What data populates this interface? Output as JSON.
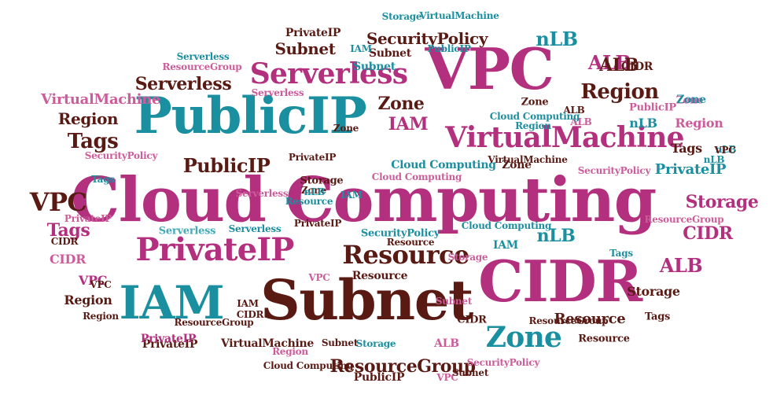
{
  "colors": {
    "magenta": "#b3307e",
    "teal": "#1a8fa0",
    "brown": "#5a1a14",
    "pink": "#cc5c9a",
    "light_teal": "#43aab8"
  },
  "words": [
    {
      "text": "Cloud Computing",
      "color": "magenta"
    },
    {
      "text": "PublicIP",
      "color": "teal"
    },
    {
      "text": "VPC",
      "color": "magenta"
    },
    {
      "text": "CIDR",
      "color": "magenta"
    },
    {
      "text": "Subnet",
      "color": "brown"
    },
    {
      "text": "IAM",
      "color": "teal"
    },
    {
      "text": "PrivateIP",
      "color": "magenta"
    },
    {
      "text": "VirtualMachine",
      "color": "magenta"
    },
    {
      "text": "Serverless",
      "color": "magenta"
    },
    {
      "text": "Resource",
      "color": "brown"
    },
    {
      "text": "Zone",
      "color": "teal"
    },
    {
      "text": "Region",
      "color": "brown"
    },
    {
      "text": "ResourceGroup",
      "color": "brown"
    },
    {
      "text": "ALB",
      "color": "magenta"
    },
    {
      "text": "nLB",
      "color": "teal"
    },
    {
      "text": "SecurityPolicy",
      "color": "brown"
    },
    {
      "text": "VPC",
      "color": "brown"
    },
    {
      "text": "Tags",
      "color": "brown"
    },
    {
      "text": "Subnet",
      "color": "brown"
    },
    {
      "text": "PublicIP",
      "color": "brown"
    },
    {
      "text": "Serverless",
      "color": "brown"
    },
    {
      "text": "Storage",
      "color": "magenta"
    },
    {
      "text": "CIDR",
      "color": "magenta"
    },
    {
      "text": "ALB",
      "color": "magenta"
    },
    {
      "text": "IAM",
      "color": "magenta"
    },
    {
      "text": "Tags",
      "color": "magenta"
    },
    {
      "text": "Region",
      "color": "brown"
    },
    {
      "text": "Zone",
      "color": "brown"
    },
    {
      "text": "Resource",
      "color": "brown"
    },
    {
      "text": "PrivateIP",
      "color": "teal"
    },
    {
      "text": "ALB",
      "color": "brown"
    },
    {
      "text": "nLB",
      "color": "teal"
    },
    {
      "text": "Storage",
      "color": "brown"
    },
    {
      "text": "VPC",
      "color": "magenta"
    },
    {
      "text": "CIDR",
      "color": "pink"
    },
    {
      "text": "Tags",
      "color": "brown"
    },
    {
      "text": "VirtualMachine",
      "color": "pink"
    },
    {
      "text": "nLB",
      "color": "teal"
    },
    {
      "text": "Region",
      "color": "brown"
    },
    {
      "text": "Cloud Computing",
      "color": "teal"
    },
    {
      "text": "Zone",
      "color": "brown"
    },
    {
      "text": "PrivateIP",
      "color": "brown"
    },
    {
      "text": "Region",
      "color": "pink"
    },
    {
      "text": "Subnet",
      "color": "brown"
    },
    {
      "text": "Subnet",
      "color": "pink"
    },
    {
      "text": "PrivateIP",
      "color": "brown"
    },
    {
      "text": "SecurityPolicy",
      "color": "teal"
    },
    {
      "text": "Serverless",
      "color": "light_teal"
    },
    {
      "text": "CIDR",
      "color": "brown"
    },
    {
      "text": "Storage",
      "color": "brown"
    },
    {
      "text": "Zone",
      "color": "pink"
    },
    {
      "text": "Zone",
      "color": "brown"
    },
    {
      "text": "PublicIP",
      "color": "pink"
    },
    {
      "text": "IAM",
      "color": "teal"
    },
    {
      "text": "IAM",
      "color": "brown"
    },
    {
      "text": "IAM",
      "color": "teal"
    },
    {
      "text": "IAM",
      "color": "teal"
    },
    {
      "text": "CIDR",
      "color": "brown"
    },
    {
      "text": "CIDR",
      "color": "brown"
    },
    {
      "text": "CIDR",
      "color": "brown"
    },
    {
      "text": "VPC",
      "color": "pink"
    },
    {
      "text": "VPC",
      "color": "pink"
    },
    {
      "text": "VPC",
      "color": "brown"
    },
    {
      "text": "ALB",
      "color": "brown"
    },
    {
      "text": "ALB",
      "color": "pink"
    },
    {
      "text": "ALB",
      "color": "pink"
    },
    {
      "text": "nLB",
      "color": "teal"
    },
    {
      "text": "Tags",
      "color": "teal"
    },
    {
      "text": "Tags",
      "color": "brown"
    },
    {
      "text": "Tags",
      "color": "teal"
    },
    {
      "text": "Resource",
      "color": "brown"
    },
    {
      "text": "Resource",
      "color": "brown"
    },
    {
      "text": "Resource",
      "color": "teal"
    },
    {
      "text": "Resource",
      "color": "brown"
    },
    {
      "text": "ResourceGroup",
      "color": "pink"
    },
    {
      "text": "ResourceGroup",
      "color": "brown"
    },
    {
      "text": "ResourceGroup",
      "color": "brown"
    },
    {
      "text": "ResourceGroup",
      "color": "pink"
    },
    {
      "text": "Serverless",
      "color": "teal"
    },
    {
      "text": "Serverless",
      "color": "pink"
    },
    {
      "text": "Serverless",
      "color": "pink"
    },
    {
      "text": "Serverless",
      "color": "teal"
    },
    {
      "text": "Storage",
      "color": "teal"
    },
    {
      "text": "Storage",
      "color": "teal"
    },
    {
      "text": "Storage",
      "color": "pink"
    },
    {
      "text": "Subnet",
      "color": "teal"
    },
    {
      "text": "Subnet",
      "color": "brown"
    },
    {
      "text": "Subnet",
      "color": "brown"
    },
    {
      "text": "PublicIP",
      "color": "brown"
    },
    {
      "text": "PublicIP",
      "color": "teal"
    },
    {
      "text": "PrivateIP",
      "color": "brown"
    },
    {
      "text": "PrivateIP",
      "color": "pink"
    },
    {
      "text": "PrivateIP",
      "color": "magenta"
    },
    {
      "text": "PrivateIP",
      "color": "brown"
    },
    {
      "text": "VirtualMachine",
      "color": "brown"
    },
    {
      "text": "VirtualMachine",
      "color": "teal"
    },
    {
      "text": "VirtualMachine",
      "color": "brown"
    },
    {
      "text": "SecurityPolicy",
      "color": "pink"
    },
    {
      "text": "SecurityPolicy",
      "color": "pink"
    },
    {
      "text": "SecurityPolicy",
      "color": "pink"
    },
    {
      "text": "Cloud Computing",
      "color": "teal"
    },
    {
      "text": "Cloud Computing",
      "color": "pink"
    },
    {
      "text": "Cloud Computing",
      "color": "brown"
    },
    {
      "text": "Cloud Computing",
      "color": "teal"
    },
    {
      "text": "Region",
      "color": "pink"
    },
    {
      "text": "Region",
      "color": "brown"
    },
    {
      "text": "Region",
      "color": "teal"
    },
    {
      "text": "Zone",
      "color": "brown"
    },
    {
      "text": "Zone",
      "color": "teal"
    },
    {
      "text": "Zone",
      "color": "brown"
    },
    {
      "text": "nLB",
      "color": "teal"
    },
    {
      "text": "nLB",
      "color": "teal"
    },
    {
      "text": "VPC",
      "color": "brown"
    }
  ]
}
